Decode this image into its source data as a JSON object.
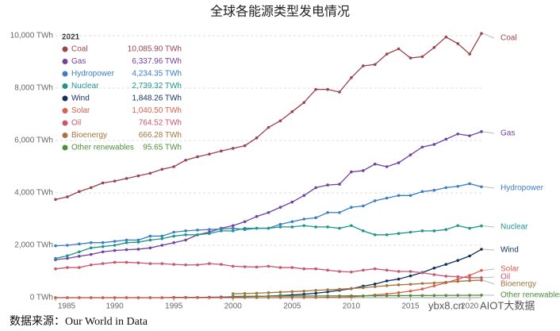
{
  "chart_data": {
    "type": "line",
    "title": "全球各能源类型发电情况",
    "legend_title": "2021",
    "x": [
      1985,
      1986,
      1987,
      1988,
      1989,
      1990,
      1991,
      1992,
      1993,
      1994,
      1995,
      1996,
      1997,
      1998,
      1999,
      2000,
      2001,
      2002,
      2003,
      2004,
      2005,
      2006,
      2007,
      2008,
      2009,
      2010,
      2011,
      2012,
      2013,
      2014,
      2015,
      2016,
      2017,
      2018,
      2019,
      2020,
      2021
    ],
    "xlim": [
      1985,
      2021
    ],
    "xticks": [
      1985,
      1990,
      1995,
      2000,
      2005,
      2010,
      2015,
      2020
    ],
    "ylim": [
      0,
      10000
    ],
    "yticks": [
      {
        "value": 0,
        "label": "0 TWh"
      },
      {
        "value": 2000,
        "label": "2,000 TWh"
      },
      {
        "value": 4000,
        "label": "4,000 TWh"
      },
      {
        "value": 6000,
        "label": "6,000 TWh"
      },
      {
        "value": 8000,
        "label": "8,000 TWh"
      },
      {
        "value": 10000,
        "label": "10,000 TWh"
      }
    ],
    "grid": true,
    "series": [
      {
        "name": "Coal",
        "color": "#9a434f",
        "value_labels_last": "10,085.90 TWh",
        "values": [
          3750,
          3850,
          4050,
          4200,
          4380,
          4450,
          4550,
          4650,
          4750,
          4900,
          5000,
          5250,
          5380,
          5480,
          5600,
          5700,
          5800,
          6100,
          6500,
          6750,
          7100,
          7450,
          7950,
          7950,
          7850,
          8400,
          8850,
          8900,
          9300,
          9500,
          9150,
          9200,
          9550,
          9950,
          9700,
          9300,
          10085.9
        ]
      },
      {
        "name": "Gas",
        "color": "#7042a0",
        "value_labels_last": "6,337.96 TWh",
        "values": [
          1450,
          1500,
          1580,
          1650,
          1750,
          1800,
          1830,
          1850,
          1900,
          2000,
          2100,
          2200,
          2400,
          2500,
          2650,
          2750,
          2900,
          3100,
          3250,
          3450,
          3650,
          3900,
          4200,
          4300,
          4330,
          4800,
          4850,
          5100,
          5000,
          5150,
          5450,
          5750,
          5850,
          6050,
          6250,
          6180,
          6337.96
        ]
      },
      {
        "name": "Hydropower",
        "color": "#3a7dc4",
        "value_labels_last": "4,234.35 TWh",
        "values": [
          1980,
          2000,
          2050,
          2100,
          2100,
          2150,
          2200,
          2200,
          2350,
          2350,
          2500,
          2550,
          2580,
          2600,
          2620,
          2650,
          2600,
          2650,
          2650,
          2800,
          2900,
          3000,
          3050,
          3250,
          3250,
          3450,
          3500,
          3700,
          3800,
          3900,
          3900,
          4050,
          4100,
          4200,
          4250,
          4350,
          4234.35
        ]
      },
      {
        "name": "Nuclear",
        "color": "#1c968a",
        "value_labels_last": "2,739.32 TWh",
        "values": [
          1500,
          1600,
          1750,
          1900,
          1950,
          2000,
          2100,
          2120,
          2200,
          2250,
          2350,
          2400,
          2400,
          2450,
          2550,
          2550,
          2650,
          2650,
          2650,
          2700,
          2700,
          2750,
          2700,
          2700,
          2650,
          2750,
          2550,
          2400,
          2400,
          2450,
          2500,
          2550,
          2550,
          2600,
          2750,
          2650,
          2739.32
        ]
      },
      {
        "name": "Wind",
        "color": "#14305e",
        "value_labels_last": "1,848.26 TWh",
        "values": [
          0,
          0,
          0,
          0,
          0,
          0,
          0,
          0,
          0,
          0,
          10,
          10,
          10,
          15,
          20,
          30,
          40,
          50,
          60,
          80,
          100,
          130,
          170,
          220,
          280,
          340,
          440,
          520,
          640,
          710,
          830,
          960,
          1130,
          1270,
          1420,
          1590,
          1848.26
        ]
      },
      {
        "name": "Solar",
        "color": "#d8604a",
        "value_labels_last": "1,040.50 TWh",
        "values": [
          0,
          0,
          0,
          0,
          0,
          0,
          0,
          0,
          0,
          0,
          0,
          0,
          0,
          0,
          0,
          1,
          1,
          1,
          1,
          2,
          4,
          5,
          7,
          12,
          20,
          32,
          63,
          100,
          140,
          190,
          250,
          330,
          450,
          570,
          700,
          850,
          1040.5
        ]
      },
      {
        "name": "Oil",
        "color": "#c9566f",
        "value_labels_last": "764.52 TWh",
        "values": [
          1100,
          1150,
          1150,
          1250,
          1300,
          1350,
          1350,
          1330,
          1300,
          1300,
          1270,
          1250,
          1250,
          1300,
          1270,
          1200,
          1180,
          1170,
          1200,
          1150,
          1150,
          1100,
          1100,
          1050,
          1000,
          980,
          1050,
          1100,
          1050,
          1000,
          1000,
          950,
          880,
          820,
          800,
          760,
          764.52
        ]
      },
      {
        "name": "Bioenergy",
        "color": "#a5753e",
        "value_labels_last": "666.28 TWh",
        "values": [
          null,
          null,
          null,
          null,
          null,
          null,
          null,
          null,
          null,
          null,
          null,
          null,
          null,
          null,
          null,
          150,
          160,
          170,
          190,
          210,
          230,
          250,
          280,
          300,
          320,
          350,
          380,
          420,
          460,
          490,
          510,
          540,
          560,
          590,
          620,
          650,
          666.28
        ]
      },
      {
        "name": "Other renewables",
        "color": "#4f8e3c",
        "value_labels_last": "95.65 TWh",
        "values": [
          null,
          null,
          null,
          null,
          null,
          null,
          null,
          null,
          null,
          null,
          null,
          null,
          null,
          null,
          null,
          50,
          52,
          54,
          56,
          58,
          60,
          62,
          64,
          66,
          68,
          70,
          72,
          74,
          76,
          78,
          80,
          82,
          84,
          86,
          88,
          90,
          95.65
        ]
      }
    ]
  },
  "source": "数据来源：Our World in Data",
  "watermark": [
    "ybx8.cn",
    "AIOT大数据"
  ]
}
